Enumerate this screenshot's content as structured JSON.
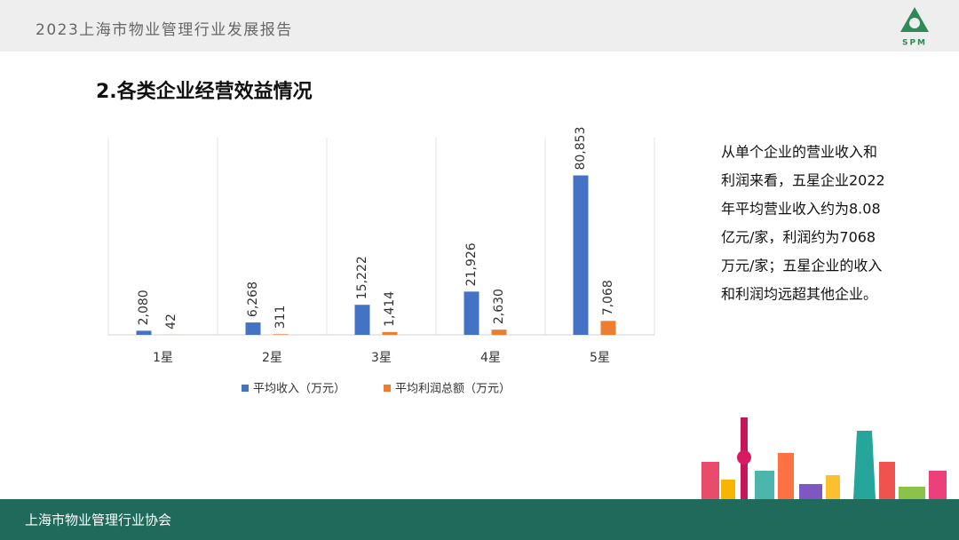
{
  "header": {
    "title": "2023上海市物业管理行业发展报告",
    "logo_text": "SPM"
  },
  "heading": "2.各类企业经营效益情况",
  "chart_data": {
    "type": "bar",
    "categories": [
      "1星",
      "2星",
      "3星",
      "4星",
      "5星"
    ],
    "series": [
      {
        "name": "平均收入（万元）",
        "color": "#4472c4",
        "values": [
          2080,
          6268,
          15222,
          21926,
          80853
        ],
        "value_labels": [
          "2,080",
          "6,268",
          "15,222",
          "21,926",
          "80,853"
        ]
      },
      {
        "name": "平均利润总额（万元）",
        "color": "#ed7d31",
        "values": [
          42,
          311,
          1414,
          2630,
          7068
        ],
        "value_labels": [
          "42",
          "311",
          "1,414",
          "2,630",
          "7,068"
        ]
      }
    ],
    "ylim": [
      0,
      100000
    ],
    "legend": "bottom"
  },
  "paragraph": [
    "从单个企业的营业收入和",
    "利润来看，五星企业2022",
    "年平均营业收入约为8.08",
    "亿元/家，利润约为7068",
    "万元/家；五星企业的收入",
    "和利润均远超其他企业。"
  ],
  "footer": {
    "text": "上海市物业管理行业协会"
  }
}
